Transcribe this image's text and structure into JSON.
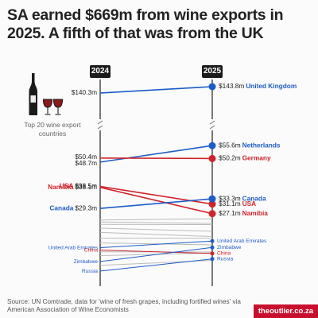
{
  "title": "SA earned $669m from wine exports in 2025. A fifth of that was from the UK",
  "caption": "Top 20 wine export countries",
  "source": "Source: UN Comtrade, data for 'wine of fresh grapes, including fortified wines' via American Association of Wine Economists",
  "brand": "theoutlier.co.za",
  "icons": [
    "wine-bottle-icon",
    "wine-glass-icon",
    "axis-break-icon"
  ],
  "colors": {
    "blue": "#1c5cc7",
    "red": "#d0232a",
    "gray": "#bbbbbb",
    "dark": "#222222"
  },
  "chart_data": {
    "type": "slope",
    "x": [
      "2024",
      "2025"
    ],
    "y_break": true,
    "series": [
      {
        "name": "United Kingdom",
        "values": [
          140.3,
          143.8
        ],
        "color": "blue",
        "label_left": "$140.3m",
        "label_right": "$143.8m",
        "name_side": "right"
      },
      {
        "name": "Netherlands",
        "values": [
          48.7,
          55.6
        ],
        "color": "blue",
        "label_left": "$48.7m",
        "label_right": "$55.6m",
        "name_side": "right"
      },
      {
        "name": "Germany",
        "values": [
          50.4,
          50.2
        ],
        "color": "red",
        "label_left": "$50.4m",
        "label_right": "$50.2m",
        "name_side": "right"
      },
      {
        "name": "USA",
        "values": [
          38.5,
          31.1
        ],
        "color": "red",
        "label_left": "$38.5m",
        "label_right": "$31.1m",
        "name_side": "both"
      },
      {
        "name": "Namibia",
        "values": [
          38.1,
          27.1
        ],
        "color": "red",
        "label_left": "$38.1m",
        "label_right": "$27.1m",
        "name_side": "both"
      },
      {
        "name": "Canada",
        "values": [
          29.3,
          33.3
        ],
        "color": "blue",
        "label_left": "$29.3m",
        "label_right": "$33.3m",
        "name_side": "both"
      },
      {
        "name": "United Arab Emirates",
        "values": [
          12.8,
          15.6
        ],
        "color": "blue",
        "name_side": "both"
      },
      {
        "name": "China",
        "values": [
          11.8,
          10.4
        ],
        "color": "red",
        "name_side": "both"
      },
      {
        "name": "Zimbabwe",
        "values": [
          7.0,
          12.9
        ],
        "color": "blue",
        "name_side": "both"
      },
      {
        "name": "Russia",
        "values": [
          3.0,
          8.1
        ],
        "color": "blue",
        "name_side": "both"
      },
      {
        "values": [
          24.4,
          24.9
        ],
        "color": "gray"
      },
      {
        "values": [
          23.6,
          23.0
        ],
        "color": "gray"
      },
      {
        "values": [
          22.6,
          22.5
        ],
        "color": "gray"
      },
      {
        "values": [
          21.0,
          19.7
        ],
        "color": "gray"
      },
      {
        "values": [
          19.2,
          17.5
        ],
        "color": "gray"
      },
      {
        "values": [
          16.8,
          16.8
        ],
        "color": "gray"
      },
      {
        "values": [
          14.8,
          14.0
        ],
        "color": "gray"
      },
      {
        "values": [
          11.1,
          11.0
        ],
        "color": "gray"
      },
      {
        "values": [
          9.5,
          10.6
        ],
        "color": "gray"
      },
      {
        "values": [
          5.4,
          7.5
        ],
        "color": "gray"
      }
    ]
  }
}
